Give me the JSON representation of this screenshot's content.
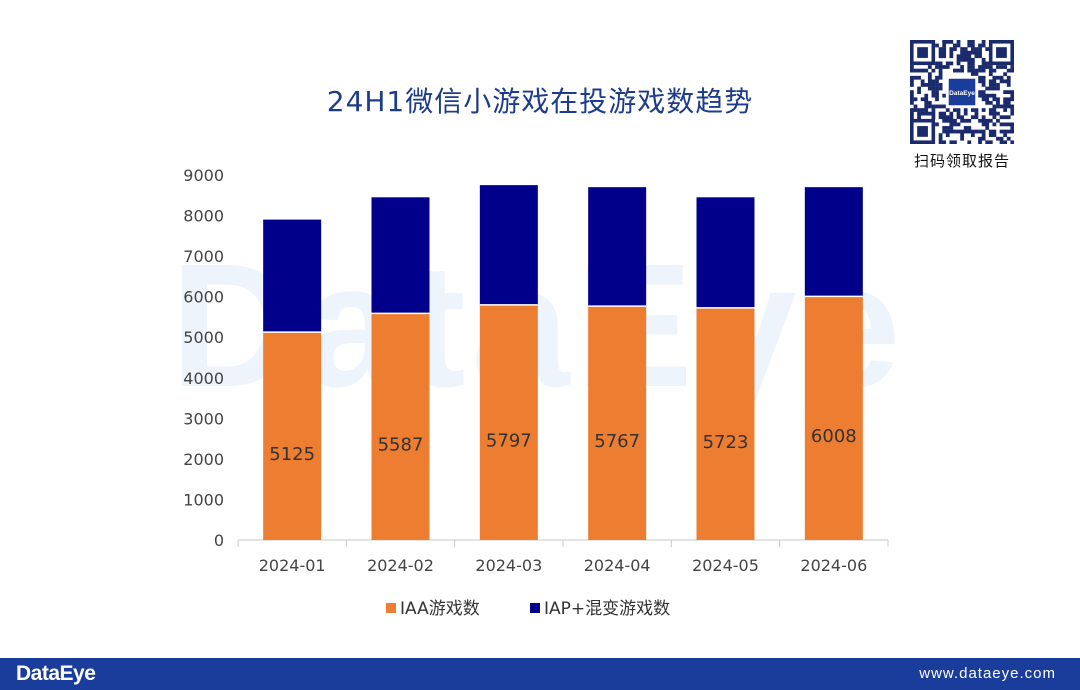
{
  "header": {
    "qr_caption": "扫码领取报告",
    "qr_center_text": "DataEye"
  },
  "watermark": "DataEye",
  "footer": {
    "brand": "DataEye",
    "url": "www.dataeye.com"
  },
  "colors": {
    "iaa": "#ed7d31",
    "iap": "#00008b",
    "footer_bg": "#1a3d9c",
    "title": "#1e3c8c"
  },
  "chart_data": {
    "type": "bar",
    "stacked": true,
    "title": "24H1微信小游戏在投游戏数趋势",
    "categories": [
      "2024-01",
      "2024-02",
      "2024-03",
      "2024-04",
      "2024-05",
      "2024-06"
    ],
    "series": [
      {
        "name": "IAA游戏数",
        "color": "#ed7d31",
        "values": [
          5125,
          5587,
          5797,
          5767,
          5723,
          6008
        ],
        "data_labels": true
      },
      {
        "name": "IAP+混变游戏数",
        "color": "#00008b",
        "values": [
          2775,
          2863,
          2953,
          2933,
          2727,
          2692
        ],
        "data_labels": false
      }
    ],
    "ylim": [
      0,
      9000
    ],
    "yticks": [
      0,
      1000,
      2000,
      3000,
      4000,
      5000,
      6000,
      7000,
      8000,
      9000
    ],
    "xlabel": "",
    "ylabel": "",
    "legend_position": "bottom",
    "grid": false
  }
}
